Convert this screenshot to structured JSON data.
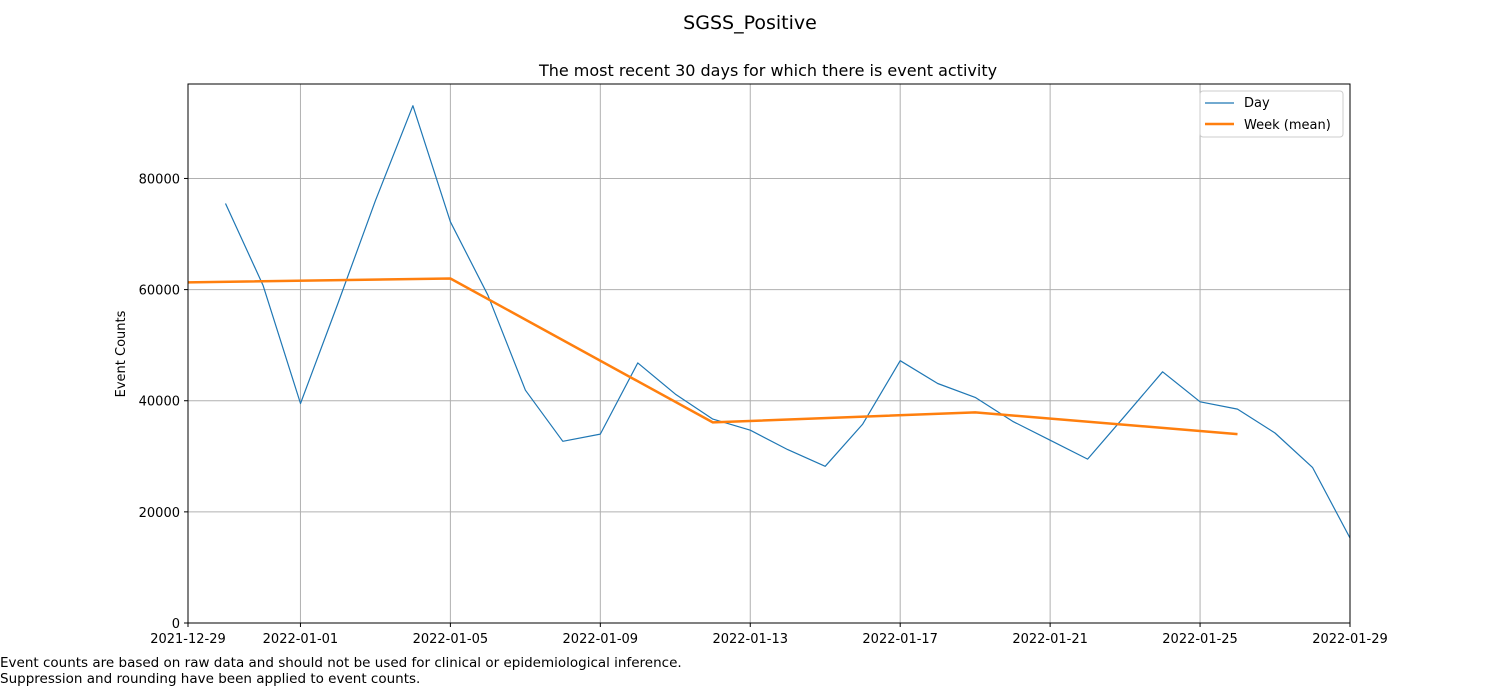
{
  "chart_data": {
    "type": "line",
    "suptitle": "SGSS_Positive",
    "title": "The most recent 30 days for which there is event activity",
    "xlabel": "",
    "ylabel": "Event Counts",
    "xlim": [
      "2021-12-29",
      "2022-01-29"
    ],
    "ylim": [
      0,
      97000
    ],
    "grid": true,
    "legend_position": "top-right",
    "x_ticks": [
      "2021-12-29",
      "2022-01-01",
      "2022-01-05",
      "2022-01-09",
      "2022-01-13",
      "2022-01-17",
      "2022-01-21",
      "2022-01-25",
      "2022-01-29"
    ],
    "y_ticks": [
      0,
      20000,
      40000,
      60000,
      80000
    ],
    "series": [
      {
        "name": "Day",
        "color": "#1f77b4",
        "x": [
          "2021-12-30",
          "2021-12-31",
          "2022-01-01",
          "2022-01-02",
          "2022-01-03",
          "2022-01-04",
          "2022-01-05",
          "2022-01-06",
          "2022-01-07",
          "2022-01-08",
          "2022-01-09",
          "2022-01-10",
          "2022-01-11",
          "2022-01-12",
          "2022-01-13",
          "2022-01-14",
          "2022-01-15",
          "2022-01-16",
          "2022-01-17",
          "2022-01-18",
          "2022-01-19",
          "2022-01-20",
          "2022-01-21",
          "2022-01-22",
          "2022-01-23",
          "2022-01-24",
          "2022-01-25",
          "2022-01-26",
          "2022-01-27",
          "2022-01-28",
          "2022-01-29"
        ],
        "values": [
          75500,
          60800,
          39500,
          57500,
          76000,
          93100,
          72200,
          59000,
          41900,
          32700,
          34000,
          46800,
          41200,
          36700,
          34700,
          31200,
          28200,
          35800,
          47200,
          43100,
          40600,
          36300,
          32900,
          29500,
          37300,
          45200,
          39800,
          38500,
          34200,
          28000,
          15300
        ]
      },
      {
        "name": "Week (mean)",
        "color": "#ff7f0e",
        "x": [
          "2021-12-29",
          "2022-01-05",
          "2022-01-12",
          "2022-01-19",
          "2022-01-26"
        ],
        "values": [
          61300,
          62000,
          36100,
          37900,
          34000
        ]
      }
    ]
  },
  "footnotes": [
    "Event counts are based on raw data and should not be used for clinical or epidemiological inference.",
    "Suppression and rounding have been applied to event counts."
  ]
}
